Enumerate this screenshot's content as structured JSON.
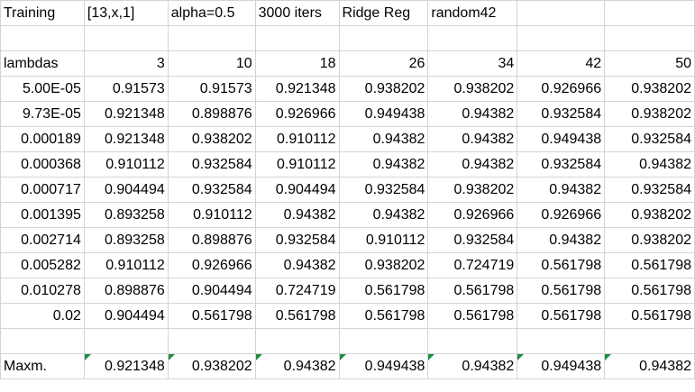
{
  "header": [
    "Training",
    "[13,x,1]",
    "alpha=0.5",
    "3000 iters",
    "Ridge Reg",
    "random42",
    "",
    ""
  ],
  "column_header": [
    "lambdas",
    "3",
    "10",
    "18",
    "26",
    "34",
    "42",
    "50"
  ],
  "rows": [
    [
      "5.00E-05",
      "0.91573",
      "0.91573",
      "0.921348",
      "0.938202",
      "0.938202",
      "0.926966",
      "0.938202"
    ],
    [
      "9.73E-05",
      "0.921348",
      "0.898876",
      "0.926966",
      "0.949438",
      "0.94382",
      "0.932584",
      "0.938202"
    ],
    [
      "0.000189",
      "0.921348",
      "0.938202",
      "0.910112",
      "0.94382",
      "0.94382",
      "0.949438",
      "0.932584"
    ],
    [
      "0.000368",
      "0.910112",
      "0.932584",
      "0.910112",
      "0.94382",
      "0.94382",
      "0.932584",
      "0.94382"
    ],
    [
      "0.000717",
      "0.904494",
      "0.932584",
      "0.904494",
      "0.932584",
      "0.938202",
      "0.94382",
      "0.932584"
    ],
    [
      "0.001395",
      "0.893258",
      "0.910112",
      "0.94382",
      "0.94382",
      "0.926966",
      "0.926966",
      "0.938202"
    ],
    [
      "0.002714",
      "0.893258",
      "0.898876",
      "0.932584",
      "0.910112",
      "0.932584",
      "0.94382",
      "0.938202"
    ],
    [
      "0.005282",
      "0.910112",
      "0.926966",
      "0.94382",
      "0.938202",
      "0.724719",
      "0.561798",
      "0.561798"
    ],
    [
      "0.010278",
      "0.898876",
      "0.904494",
      "0.724719",
      "0.561798",
      "0.561798",
      "0.561798",
      "0.561798"
    ],
    [
      "0.02",
      "0.904494",
      "0.561798",
      "0.561798",
      "0.561798",
      "0.561798",
      "0.561798",
      "0.561798"
    ]
  ],
  "max_row": [
    "Maxm.",
    "0.921348",
    "0.938202",
    "0.94382",
    "0.949438",
    "0.94382",
    "0.949438",
    "0.94382"
  ],
  "colors": {
    "gridline": "#d4d4d4",
    "error_indicator": "#1e8e3e"
  }
}
